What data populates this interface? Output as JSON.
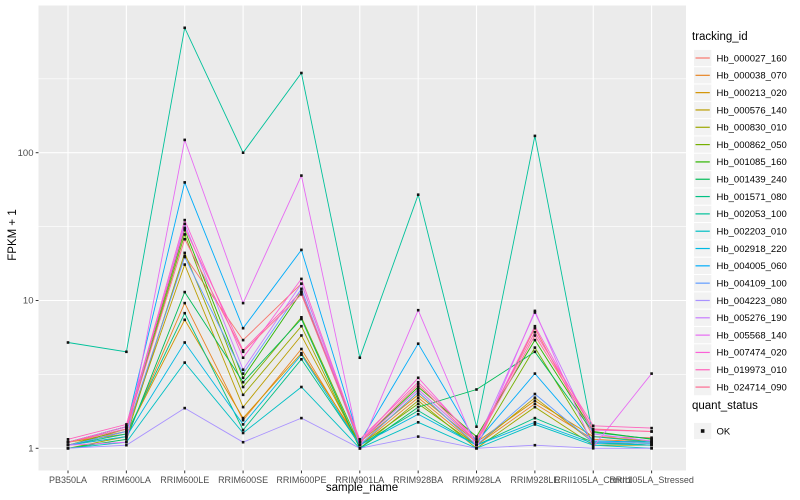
{
  "figure": {
    "panel_bg": "#EBEBEB",
    "grid_color": "#FFFFFF",
    "tick_color": "#333333",
    "tick_label_color": "#4D4D4D",
    "text_color": "#000000",
    "point_color": "#111111",
    "legend_key_bg": "#F2F2F2"
  },
  "chart_data": {
    "type": "line",
    "xlabel": "sample_name",
    "ylabel": "FPKM + 1",
    "y_scale": "log10",
    "y_ticks": [
      1,
      10,
      100
    ],
    "y_tick_labels": [
      "1",
      "10",
      "100"
    ],
    "ylim": [
      0.7,
      1000
    ],
    "grid": true,
    "legend_position": "right",
    "legend_title": "tracking_id",
    "quant_legend": {
      "title": "quant_status",
      "item": "OK"
    },
    "categories": [
      "PB350LA",
      "RRIM600LA",
      "RRIM600LE",
      "RRIM600SE",
      "RRIM600PE",
      "RRIM901LA",
      "RRIM928BA",
      "RRIM928LA",
      "RRIM928LE",
      "RRII105LA_Control",
      "RRII105LA_Stressed"
    ],
    "series": [
      {
        "name": "Hb_000027_160",
        "color": "#F8766D",
        "values": [
          1.1,
          1.3,
          20,
          5.4,
          13,
          1.1,
          2.5,
          1.1,
          6.5,
          1.2,
          1.18
        ]
      },
      {
        "name": "Hb_000038_070",
        "color": "#E88526",
        "values": [
          1.05,
          1.2,
          9.6,
          1.55,
          4.7,
          1.05,
          2.2,
          1.05,
          2.0,
          1.15,
          1.1
        ]
      },
      {
        "name": "Hb_000213_020",
        "color": "#D39200",
        "values": [
          1.1,
          1.25,
          7.4,
          1.6,
          4.4,
          1.1,
          2.3,
          1.1,
          2.1,
          1.2,
          1.12
        ]
      },
      {
        "name": "Hb_000576_140",
        "color": "#BB9D00",
        "values": [
          1.05,
          1.3,
          17.5,
          1.9,
          5.8,
          1.05,
          2.4,
          1.05,
          2.2,
          1.1,
          1.08
        ]
      },
      {
        "name": "Hb_000830_010",
        "color": "#9DA700",
        "values": [
          1.0,
          1.2,
          21,
          2.3,
          6.7,
          1.0,
          2.1,
          1.0,
          1.9,
          1.05,
          1.05
        ]
      },
      {
        "name": "Hb_000862_050",
        "color": "#75AF00",
        "values": [
          1.05,
          1.35,
          28,
          2.6,
          7.7,
          1.05,
          2.0,
          1.05,
          4.8,
          1.1,
          1.05
        ]
      },
      {
        "name": "Hb_001085_160",
        "color": "#2FB600",
        "values": [
          1.1,
          1.4,
          30,
          3.0,
          11.4,
          1.1,
          2.6,
          1.2,
          5.4,
          1.3,
          1.15
        ]
      },
      {
        "name": "Hb_001439_240",
        "color": "#00BB57",
        "values": [
          1.0,
          1.15,
          11.4,
          2.8,
          7.5,
          1.0,
          1.9,
          2.5,
          4.5,
          1.28,
          1.16
        ]
      },
      {
        "name": "Hb_001571_080",
        "color": "#00C083",
        "values": [
          1.05,
          1.25,
          8.2,
          1.33,
          4.0,
          1.05,
          1.8,
          1.05,
          1.6,
          1.1,
          1.05
        ]
      },
      {
        "name": "Hb_002053_100",
        "color": "#00C19A",
        "values": [
          5.2,
          4.5,
          700,
          100,
          346,
          4.1,
          52,
          1.4,
          130,
          1.2,
          1.1
        ]
      },
      {
        "name": "Hb_002203_010",
        "color": "#00BFC4",
        "values": [
          1.0,
          1.1,
          3.8,
          1.27,
          2.6,
          1.0,
          1.5,
          1.0,
          1.45,
          1.05,
          1.0
        ]
      },
      {
        "name": "Hb_002918_220",
        "color": "#00B9E3",
        "values": [
          1.05,
          1.2,
          5.2,
          1.45,
          4.3,
          1.05,
          1.7,
          1.05,
          1.5,
          1.08,
          1.05
        ]
      },
      {
        "name": "Hb_004005_060",
        "color": "#00ACFA",
        "values": [
          1.1,
          1.4,
          63,
          6.5,
          22,
          1.1,
          5.1,
          1.1,
          3.2,
          1.12,
          1.1
        ]
      },
      {
        "name": "Hb_004109_100",
        "color": "#619CFF",
        "values": [
          1.05,
          1.3,
          19.7,
          3.2,
          12,
          1.05,
          2.4,
          1.05,
          2.33,
          1.1,
          1.08
        ]
      },
      {
        "name": "Hb_004223_080",
        "color": "#A992FF",
        "values": [
          1.0,
          1.05,
          1.87,
          1.1,
          1.6,
          1.0,
          1.2,
          1.0,
          1.05,
          1.0,
          1.0
        ]
      },
      {
        "name": "Hb_005276_190",
        "color": "#C77CFF",
        "values": [
          1.1,
          1.35,
          33,
          3.4,
          13,
          1.1,
          2.5,
          1.1,
          8.3,
          1.25,
          1.12
        ]
      },
      {
        "name": "Hb_005568_140",
        "color": "#E76BF3",
        "values": [
          1.05,
          1.1,
          122,
          9.6,
          70,
          1.0,
          8.6,
          1.0,
          8.5,
          1.02,
          3.2
        ]
      },
      {
        "name": "Hb_007474_020",
        "color": "#FB61D7",
        "values": [
          1.1,
          1.4,
          35,
          4.1,
          14,
          1.1,
          3.0,
          1.1,
          6.7,
          1.33,
          1.3
        ]
      },
      {
        "name": "Hb_019973_010",
        "color": "#FF62BC",
        "values": [
          1.15,
          1.45,
          31,
          4.6,
          11.5,
          1.15,
          2.8,
          1.15,
          6.1,
          1.42,
          1.37
        ]
      },
      {
        "name": "Hb_024714_090",
        "color": "#FF6C91",
        "values": [
          1.1,
          1.35,
          26,
          4.5,
          11,
          1.1,
          2.7,
          1.1,
          5.8,
          1.35,
          1.3
        ]
      }
    ]
  }
}
